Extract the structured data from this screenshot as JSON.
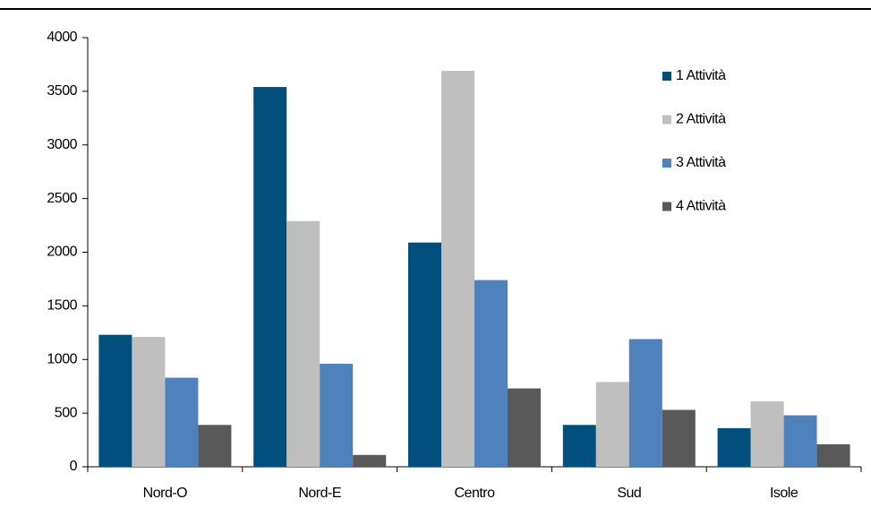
{
  "chart_data": {
    "type": "bar",
    "categories": [
      "Nord-O",
      "Nord-E",
      "Centro",
      "Sud",
      "Isole"
    ],
    "series": [
      {
        "name": "1 Attività",
        "color": "#004f7c",
        "values": [
          1230,
          3540,
          2090,
          390,
          360
        ]
      },
      {
        "name": "2 Attività",
        "color": "#bfbfbf",
        "values": [
          1210,
          2290,
          3690,
          790,
          610
        ]
      },
      {
        "name": "3 Attività",
        "color": "#4f81bd",
        "values": [
          830,
          960,
          1740,
          1190,
          480
        ]
      },
      {
        "name": "4 Attività",
        "color": "#595959",
        "values": [
          390,
          110,
          730,
          530,
          210
        ]
      }
    ],
    "ylim": [
      0,
      4000
    ],
    "yticks": [
      0,
      500,
      1000,
      1500,
      2000,
      2500,
      3000,
      3500,
      4000
    ],
    "grid": false,
    "legend": "upper-right"
  }
}
